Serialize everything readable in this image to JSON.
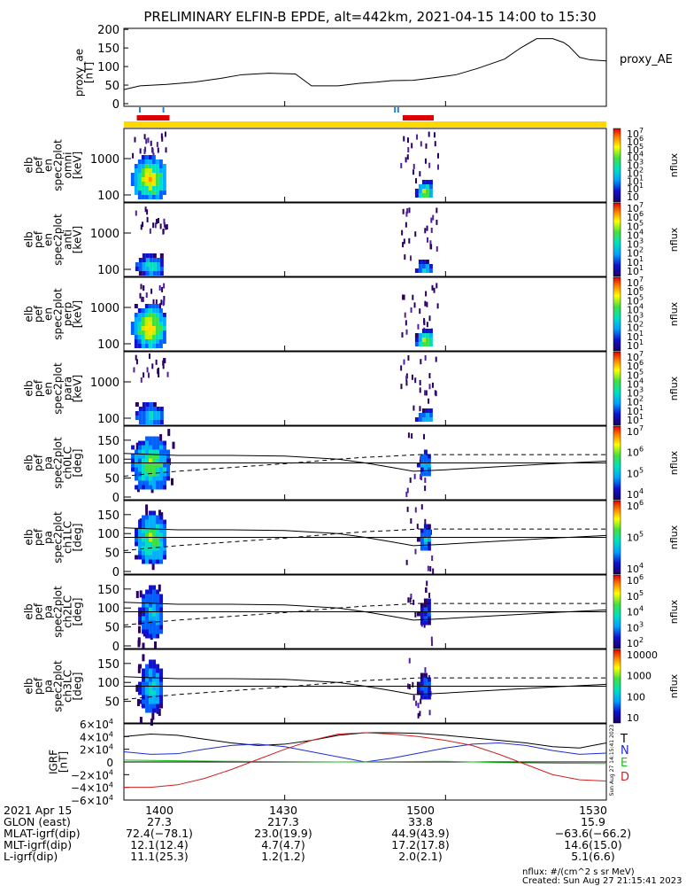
{
  "title": "PRELIMINARY ELFIN-B EPDE, alt=442km, 2021-04-15 14:00 to 15:30",
  "ae_panel": {
    "ylabel": [
      "proxy_ae",
      "[nT]"
    ],
    "legend": "proxy_AE",
    "yticks": [
      "200",
      "150",
      "100",
      "50",
      "0"
    ]
  },
  "energy_panels": [
    {
      "ylabel": [
        "elb",
        "pef",
        "en",
        "spec2plot",
        "omni",
        "[keV]"
      ],
      "yticks": [
        "1000",
        "100"
      ],
      "cbar_ticks": [
        "10",
        "10",
        "10",
        "10",
        "10",
        "10",
        "10",
        "10",
        "10"
      ],
      "cbar_exps": [
        "7",
        "6",
        "5",
        "4",
        "3",
        "2",
        "1",
        "1",
        ""
      ],
      "cbar_label": "nflux"
    },
    {
      "ylabel": [
        "elb",
        "pef",
        "en",
        "spec2plot",
        "anti",
        "[keV]"
      ],
      "yticks": [
        "1000",
        "100"
      ],
      "cbar_ticks": [
        "10",
        "10",
        "10",
        "10",
        "10",
        "10",
        "10",
        "10"
      ],
      "cbar_exps": [
        "7",
        "6",
        "5",
        "4",
        "3",
        "2",
        "1",
        "1"
      ],
      "cbar_label": "nflux"
    },
    {
      "ylabel": [
        "elb",
        "pef",
        "en",
        "spec2plot",
        "perp",
        "[keV]"
      ],
      "yticks": [
        "1000",
        "100"
      ],
      "cbar_ticks": [
        "10",
        "10",
        "10",
        "10",
        "10",
        "10",
        "10",
        "10"
      ],
      "cbar_exps": [
        "7",
        "6",
        "5",
        "4",
        "3",
        "2",
        "1",
        "1"
      ],
      "cbar_label": "nflux"
    },
    {
      "ylabel": [
        "elb",
        "pef",
        "en",
        "spec2plot",
        "para",
        "[keV]"
      ],
      "yticks": [
        "1000",
        "100"
      ],
      "cbar_ticks": [
        "10",
        "10",
        "10",
        "10",
        "10",
        "10",
        "10",
        "10"
      ],
      "cbar_exps": [
        "7",
        "6",
        "5",
        "4",
        "3",
        "2",
        "1",
        "1"
      ],
      "cbar_label": "nflux"
    }
  ],
  "pa_panels": [
    {
      "ylabel": [
        "elb",
        "pef",
        "pa",
        "spec2plot",
        "ch0LC",
        "[deg]"
      ],
      "yticks": [
        "150",
        "100",
        "50",
        "0"
      ],
      "cbar_ticks": [
        "10",
        "10",
        "10",
        "10"
      ],
      "cbar_exps": [
        "7",
        "6",
        "5",
        "4"
      ],
      "cbar_label": "nflux"
    },
    {
      "ylabel": [
        "elb",
        "pef",
        "pa",
        "spec2plot",
        "ch1LC",
        "[deg]"
      ],
      "yticks": [
        "150",
        "100",
        "50",
        "0"
      ],
      "cbar_ticks": [
        "10",
        "10",
        "10"
      ],
      "cbar_exps": [
        "6",
        "5",
        "4"
      ],
      "cbar_label": "nflux"
    },
    {
      "ylabel": [
        "elb",
        "pef",
        "pa",
        "spec2plot",
        "ch2LC",
        "[deg]"
      ],
      "yticks": [
        "150",
        "100",
        "50",
        "0"
      ],
      "cbar_ticks": [
        "10",
        "10",
        "10",
        "10",
        "10"
      ],
      "cbar_exps": [
        "6",
        "5",
        "4",
        "3",
        "2"
      ],
      "cbar_label": "nflux"
    },
    {
      "ylabel": [
        "elb",
        "pef",
        "pa",
        "spec2plot",
        "ch3LC",
        "[deg]"
      ],
      "yticks": [
        "150",
        "100",
        "50"
      ],
      "cbar_ticks": [
        "10000",
        "1000",
        "100",
        "10"
      ],
      "cbar_exps": [
        "",
        "",
        "",
        ""
      ],
      "cbar_label": "nflux"
    }
  ],
  "igrf_panel": {
    "ylabel": [
      "IGRF",
      "[nT]"
    ],
    "yticks": [
      "6×10",
      "4×10",
      "2×10",
      "0",
      "−2×10",
      "−4×10",
      "−6×10"
    ],
    "ytick_exp": "4",
    "legend": [
      {
        "name": "T",
        "color": "#000000"
      },
      {
        "name": "N",
        "color": "#1f2bd0"
      },
      {
        "name": "E",
        "color": "#1fc01f"
      },
      {
        "name": "D",
        "color": "#d01f1f"
      }
    ],
    "side_note": "Sun Aug 27 14:15:41 2023"
  },
  "time_axis": {
    "ticks": [
      "1400",
      "1430",
      "1500",
      "1530"
    ]
  },
  "footer": {
    "rows": [
      {
        "label": "2021 Apr 15",
        "values": [
          "1400",
          "1430",
          "1500",
          "1530"
        ]
      },
      {
        "label": "GLON (east)",
        "values": [
          "27.3",
          "217.3",
          "33.8",
          "15.9"
        ]
      },
      {
        "label": "MLAT-igrf(dip)",
        "values": [
          "72.4(−78.1)",
          "23.0(19.9)",
          "44.9(43.9)",
          "−63.6(−66.2)"
        ]
      },
      {
        "label": "MLT-igrf(dip)",
        "values": [
          "12.1(12.4)",
          "4.7(4.7)",
          "17.2(17.8)",
          "14.6(15.0)"
        ]
      },
      {
        "label": "L-igrf(dip)",
        "values": [
          "11.1(25.3)",
          "1.2(1.2)",
          "2.0(2.1)",
          "5.1(6.6)"
        ]
      }
    ],
    "note1": "nflux: #/(cm^2 s sr MeV)",
    "note2": "Created: Sun Aug 27 21:15:41 2023"
  },
  "chart_data": {
    "type": "line",
    "title": "PRELIMINARY ELFIN-B EPDE, alt=442km, 2021-04-15 14:00 to 15:30",
    "xlabel": "",
    "x_range_minutes": [
      0,
      90
    ],
    "x_ticks": [
      "1400",
      "1430",
      "1500",
      "1530"
    ],
    "proxy_ae": {
      "ylim": [
        0,
        210
      ],
      "x": [
        0,
        3,
        8,
        13,
        18,
        22,
        27,
        32,
        35,
        40,
        44,
        47,
        50,
        54,
        58,
        62,
        66,
        71,
        74,
        77,
        80,
        82,
        83,
        84,
        85,
        87,
        90
      ],
      "y": [
        38,
        48,
        52,
        58,
        68,
        78,
        82,
        80,
        48,
        48,
        55,
        58,
        62,
        63,
        70,
        78,
        95,
        120,
        150,
        175,
        175,
        165,
        155,
        140,
        125,
        118,
        115
      ]
    },
    "science_zones": [
      {
        "start_min": 2.4,
        "end_min": 8.5,
        "color": "#e00000"
      },
      {
        "start_min": 52.0,
        "end_min": 57.8,
        "color": "#e00000"
      }
    ],
    "igrf": {
      "ylim": [
        -60000,
        60000
      ],
      "series": [
        {
          "name": "T",
          "color": "#000000",
          "x": [
            0,
            5,
            10,
            15,
            20,
            25,
            30,
            35,
            40,
            45,
            50,
            55,
            60,
            65,
            70,
            75,
            80,
            85,
            90
          ],
          "y": [
            40000,
            44000,
            42000,
            36000,
            30000,
            26000,
            28000,
            34000,
            42000,
            46000,
            46000,
            45000,
            42000,
            38000,
            34000,
            30000,
            24000,
            22000,
            30000
          ]
        },
        {
          "name": "N",
          "color": "#1f2bd0",
          "x": [
            0,
            5,
            10,
            15,
            20,
            25,
            30,
            35,
            40,
            45,
            50,
            55,
            60,
            65,
            70,
            75,
            80,
            85,
            90
          ],
          "y": [
            16000,
            12000,
            13000,
            20000,
            26000,
            28000,
            24000,
            16000,
            8000,
            0,
            6000,
            14000,
            22000,
            28000,
            30000,
            26000,
            18000,
            12000,
            14000
          ]
        },
        {
          "name": "E",
          "color": "#1fc01f",
          "x": [
            0,
            10,
            20,
            30,
            40,
            50,
            60,
            70,
            80,
            90
          ],
          "y": [
            3000,
            2000,
            1000,
            500,
            0,
            500,
            1000,
            -1000,
            -2000,
            -2500
          ]
        },
        {
          "name": "D",
          "color": "#d01f1f",
          "x": [
            0,
            5,
            10,
            15,
            20,
            25,
            30,
            35,
            40,
            45,
            50,
            55,
            60,
            65,
            70,
            75,
            80,
            85,
            90
          ],
          "y": [
            -40000,
            -40000,
            -36000,
            -26000,
            -12000,
            4000,
            20000,
            34000,
            44000,
            46000,
            44000,
            40000,
            34000,
            26000,
            12000,
            -4000,
            -20000,
            -28000,
            -30000
          ]
        }
      ]
    },
    "pa_lines": {
      "solid1": {
        "x": [
          0,
          10,
          20,
          30,
          40,
          45,
          50,
          54,
          60,
          70,
          80,
          90
        ],
        "y": [
          115,
          110,
          110,
          108,
          100,
          90,
          78,
          68,
          72,
          80,
          88,
          95
        ]
      },
      "solid2": {
        "x": [
          0,
          10,
          20,
          30,
          40,
          45,
          50,
          54,
          60,
          70,
          80,
          90
        ],
        "y": [
          90,
          90,
          90,
          90,
          90,
          90,
          90,
          90,
          90,
          90,
          90,
          90
        ]
      },
      "dashed": {
        "x": [
          0,
          5,
          10,
          20,
          30,
          40,
          45,
          50,
          55,
          60,
          70,
          80,
          90
        ],
        "y": [
          55,
          62,
          68,
          78,
          88,
          100,
          105,
          108,
          112,
          112,
          112,
          112,
          112
        ]
      },
      "ylim": [
        0,
        180
      ]
    }
  }
}
